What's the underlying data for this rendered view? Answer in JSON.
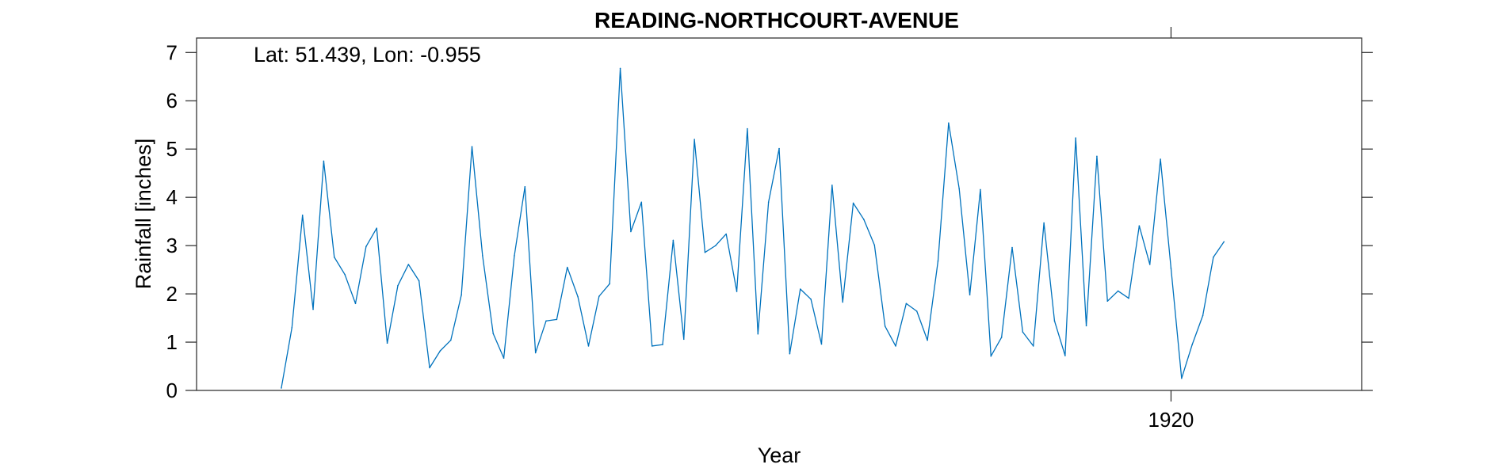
{
  "chart_data": {
    "type": "line",
    "title": "READING-NORTHCOURT-AVENUE",
    "annotation": "Lat: 51.439, Lon: -0.955",
    "xlabel": "Year",
    "ylabel": "Rainfall [inches]",
    "xlim": [
      1912.333,
      1921.5
    ],
    "ylim": [
      0,
      7.3
    ],
    "yticks": [
      0,
      1,
      2,
      3,
      4,
      5,
      6,
      7
    ],
    "xticks": [
      1920
    ],
    "grid": false,
    "line_color": "#0072BD",
    "series": [
      {
        "x": [
          1913.0,
          1913.0833,
          1913.1667,
          1913.25,
          1913.3333,
          1913.4167,
          1913.5,
          1913.5833,
          1913.6667,
          1913.75,
          1913.8333,
          1913.9167,
          1914.0,
          1914.0833,
          1914.1667,
          1914.25,
          1914.3333,
          1914.4167,
          1914.5,
          1914.5833,
          1914.6667,
          1914.75,
          1914.8333,
          1914.9167,
          1915.0,
          1915.0833,
          1915.1667,
          1915.25,
          1915.3333,
          1915.4167,
          1915.5,
          1915.5833,
          1915.6667,
          1915.75,
          1915.8333,
          1915.9167,
          1916.0,
          1916.0833,
          1916.1667,
          1916.25,
          1916.3333,
          1916.4167,
          1916.5,
          1916.5833,
          1916.6667,
          1916.75,
          1916.8333,
          1916.9167,
          1917.0,
          1917.0833,
          1917.1667,
          1917.25,
          1917.3333,
          1917.4167,
          1917.5,
          1917.5833,
          1917.6667,
          1917.75,
          1917.8333,
          1917.9167,
          1918.0,
          1918.0833,
          1918.1667,
          1918.25,
          1918.3333,
          1918.4167,
          1918.5,
          1918.5833,
          1918.6667,
          1918.75,
          1918.8333,
          1918.9167,
          1919.0,
          1919.0833,
          1919.1667,
          1919.25,
          1919.3333,
          1919.4167,
          1919.5,
          1919.5833,
          1919.6667,
          1919.75,
          1919.8333,
          1919.9167,
          1920.0,
          1920.0833,
          1920.1667,
          1920.25,
          1920.3333,
          1920.4167
        ],
        "values": [
          0.05,
          1.3,
          3.63,
          1.68,
          4.75,
          2.76,
          2.4,
          1.8,
          2.98,
          3.36,
          0.98,
          2.17,
          2.61,
          2.27,
          0.47,
          0.82,
          1.04,
          1.98,
          5.05,
          2.79,
          1.18,
          0.67,
          2.79,
          4.22,
          0.78,
          1.44,
          1.47,
          2.55,
          1.94,
          0.92,
          1.95,
          2.21,
          6.67,
          3.29,
          3.9,
          0.92,
          0.95,
          3.11,
          1.06,
          5.2,
          2.86,
          3.0,
          3.24,
          2.05,
          5.42,
          1.17,
          3.9,
          5.01,
          0.76,
          2.1,
          1.89,
          0.96,
          4.25,
          1.83,
          3.88,
          3.54,
          3.01,
          1.33,
          0.92,
          1.8,
          1.64,
          1.04,
          2.68,
          5.54,
          4.18,
          1.98,
          4.16,
          0.71,
          1.1,
          2.96,
          1.21,
          0.92,
          3.47,
          1.44,
          0.72,
          5.23,
          1.34,
          4.85,
          1.85,
          2.06,
          1.91,
          3.41,
          2.61,
          4.79,
          2.53,
          0.25,
          0.95,
          1.55,
          2.76,
          3.08
        ]
      }
    ]
  }
}
